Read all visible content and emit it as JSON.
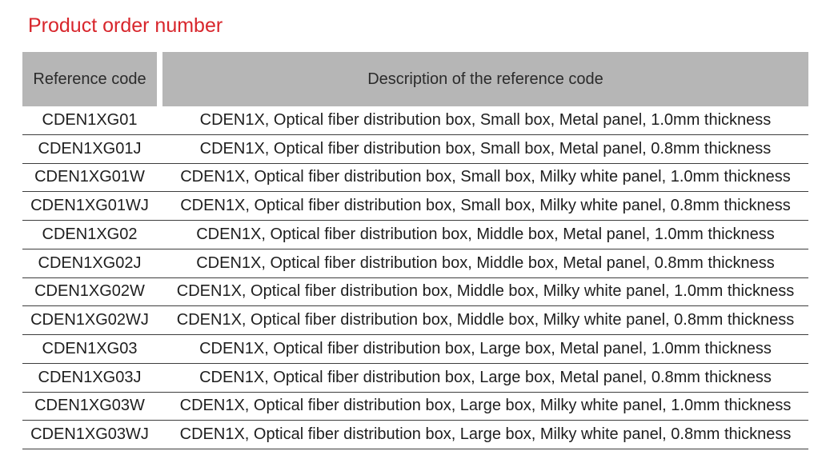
{
  "title": "Product order number",
  "colors": {
    "title": "#d8262c",
    "header_bg": "#b6b6b6",
    "row_line": "#3d3d3d"
  },
  "table": {
    "columns": [
      "Reference code",
      "Description of the reference code"
    ],
    "rows": [
      {
        "code": "CDEN1XG01",
        "description": "CDEN1X, Optical fiber distribution box, Small box, Metal panel, 1.0mm thickness"
      },
      {
        "code": "CDEN1XG01J",
        "description": "CDEN1X, Optical fiber distribution box, Small box, Metal panel, 0.8mm thickness"
      },
      {
        "code": "CDEN1XG01W",
        "description": "CDEN1X, Optical fiber distribution box, Small box, Milky white panel, 1.0mm thickness"
      },
      {
        "code": "CDEN1XG01WJ",
        "description": "CDEN1X, Optical fiber distribution box, Small box, Milky white panel, 0.8mm thickness"
      },
      {
        "code": "CDEN1XG02",
        "description": "CDEN1X, Optical fiber distribution box, Middle box, Metal panel, 1.0mm thickness"
      },
      {
        "code": "CDEN1XG02J",
        "description": "CDEN1X, Optical fiber distribution box, Middle box, Metal panel, 0.8mm thickness"
      },
      {
        "code": "CDEN1XG02W",
        "description": "CDEN1X, Optical fiber distribution box, Middle box, Milky white panel, 1.0mm thickness"
      },
      {
        "code": "CDEN1XG02WJ",
        "description": "CDEN1X, Optical fiber distribution box, Middle box, Milky white panel, 0.8mm thickness"
      },
      {
        "code": "CDEN1XG03",
        "description": "CDEN1X, Optical fiber distribution box, Large box, Metal panel, 1.0mm thickness"
      },
      {
        "code": "CDEN1XG03J",
        "description": "CDEN1X, Optical fiber distribution box, Large box, Metal panel, 0.8mm thickness"
      },
      {
        "code": "CDEN1XG03W",
        "description": "CDEN1X, Optical fiber distribution box, Large box, Milky white panel, 1.0mm thickness"
      },
      {
        "code": "CDEN1XG03WJ",
        "description": "CDEN1X, Optical fiber distribution box, Large box, Milky white panel, 0.8mm thickness"
      }
    ]
  }
}
